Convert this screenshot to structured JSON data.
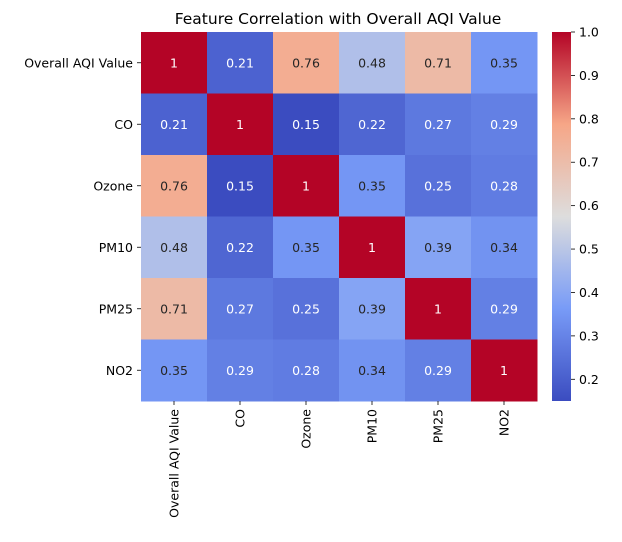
{
  "chart_data": {
    "type": "heatmap",
    "title": "Feature Correlation with Overall AQI Value",
    "row_labels": [
      "Overall AQI Value",
      "CO",
      "Ozone",
      "PM10",
      "PM25",
      "NO2"
    ],
    "col_labels": [
      "Overall AQI Value",
      "CO",
      "Ozone",
      "PM10",
      "PM25",
      "NO2"
    ],
    "values": [
      [
        1,
        0.21,
        0.76,
        0.48,
        0.71,
        0.35
      ],
      [
        0.21,
        1,
        0.15,
        0.22,
        0.27,
        0.29
      ],
      [
        0.76,
        0.15,
        1,
        0.35,
        0.25,
        0.28
      ],
      [
        0.48,
        0.22,
        0.35,
        1,
        0.39,
        0.34
      ],
      [
        0.71,
        0.27,
        0.25,
        0.39,
        1,
        0.29
      ],
      [
        0.35,
        0.29,
        0.28,
        0.34,
        0.29,
        1
      ]
    ],
    "colormap": "coolwarm",
    "vmin": 0.15,
    "vmax": 1.0,
    "colorbar_ticks": [
      "0.2",
      "0.3",
      "0.4",
      "0.5",
      "0.6",
      "0.7",
      "0.8",
      "0.9",
      "1.0"
    ],
    "annotated": true
  }
}
